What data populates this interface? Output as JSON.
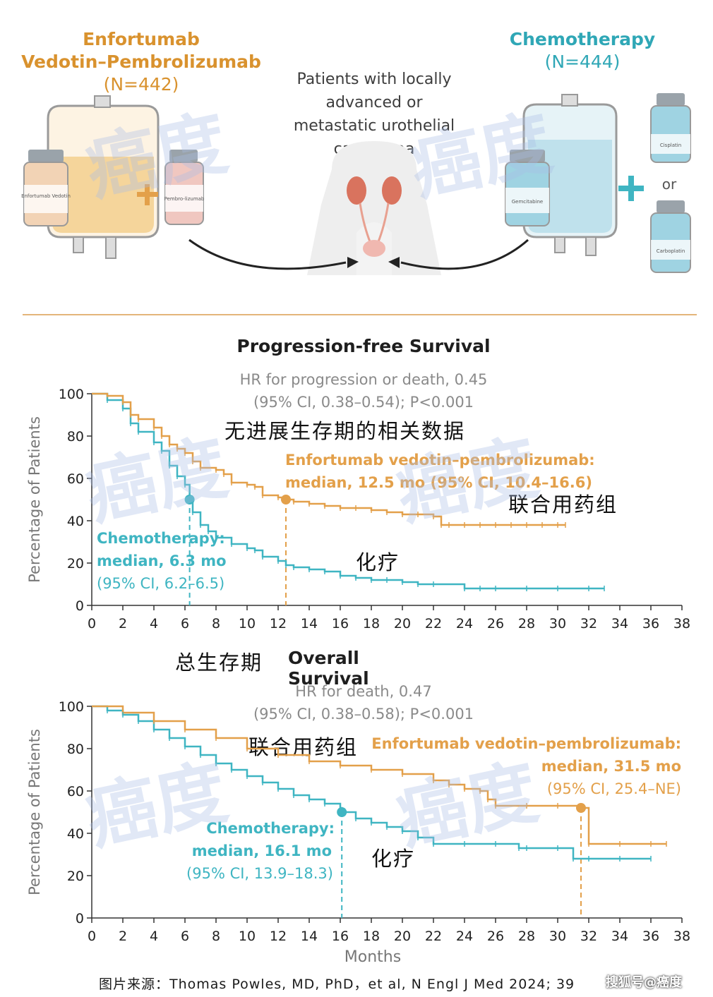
{
  "top": {
    "ev_arm": {
      "line1": "Enfortumab",
      "line2": "Vedotin–Pembrolizumab",
      "n": "(N=442)",
      "vial1_label": "Enfortumab Vedotin",
      "vial2_label": "Pembro-lizumab"
    },
    "chemo_arm": {
      "line1": "Chemotherapy",
      "n": "(N=444)",
      "vial_main": "Gemcitabine",
      "vial_a": "Cisplatin",
      "vial_b": "Carboplatin",
      "or_text": "or"
    },
    "patients": [
      "Patients with locally",
      "advanced or",
      "metastatic urothelial",
      "carcinoma"
    ]
  },
  "pfs": {
    "title": "Progression-free Survival",
    "hr_line1": "HR for progression or death, 0.45",
    "hr_line2": "(95% CI, 0.38–0.54); P<0.001",
    "cn_title": "无进展生存期的相关数据",
    "cn_ev": "联合用药组",
    "cn_chemo": "化疗",
    "ev_label": [
      "Enfortumab vedotin–pembrolizumab:",
      "median, 12.5 mo (95% CI, 10.4–16.6)"
    ],
    "chemo_label": [
      "Chemotherapy:",
      "median, 6.3 mo",
      "(95% CI, 6.2–6.5)"
    ]
  },
  "os": {
    "title": "Overall Survival",
    "cn_title": "总生存期",
    "hr_line1": "HR for death, 0.47",
    "hr_line2": "(95% CI, 0.38–0.58); P<0.001",
    "cn_ev": "联合用药组",
    "cn_chemo": "化疗",
    "ev_label": [
      "Enfortumab vedotin–pembrolizumab:",
      "median, 31.5 mo",
      "(95% CI, 25.4–NE)"
    ],
    "chemo_label": [
      "Chemotherapy:",
      "median, 16.1 mo",
      "(95% CI, 13.9–18.3)"
    ]
  },
  "source": "图片来源：Thomas Powles, MD, PhD，et al, N Engl J Med 2024; 39",
  "brand": "搜狐号@癌度",
  "watermark": "癌度",
  "colors": {
    "ev": "#e3a04a",
    "chemo": "#3fb5c2",
    "axis": "#333333"
  },
  "chart_data": [
    {
      "type": "line",
      "title": "Progression-free Survival",
      "xlabel": "",
      "ylabel": "Percentage of Patients",
      "xlim": [
        0,
        38
      ],
      "ylim": [
        0,
        100
      ],
      "xticks": [
        0,
        2,
        4,
        6,
        8,
        10,
        12,
        14,
        16,
        18,
        20,
        22,
        24,
        26,
        28,
        30,
        32,
        34,
        36,
        38
      ],
      "yticks": [
        0,
        20,
        40,
        60,
        80,
        100
      ],
      "series": [
        {
          "name": "Enfortumab vedotin–pembrolizumab",
          "median": 12.5,
          "x": [
            0,
            1,
            2,
            2.5,
            3,
            4,
            4.5,
            5,
            5.5,
            6,
            6.5,
            7,
            8,
            8.5,
            9,
            10,
            10.5,
            11,
            12,
            12.5,
            13,
            14,
            15,
            16,
            17,
            18,
            19,
            20,
            21,
            22,
            22.5,
            23,
            24,
            25,
            26,
            27,
            28,
            29,
            30,
            30.5
          ],
          "y": [
            100,
            99,
            96,
            90,
            88,
            84,
            80,
            76,
            74,
            72,
            68,
            65,
            64,
            62,
            58,
            57,
            56,
            52,
            51,
            50,
            49,
            48,
            47,
            46,
            46,
            45,
            44,
            43,
            43,
            42,
            38,
            38,
            38,
            38,
            38,
            38,
            38,
            38,
            38,
            38
          ]
        },
        {
          "name": "Chemotherapy",
          "median": 6.3,
          "x": [
            0,
            1,
            2,
            2.5,
            3,
            4,
            4.5,
            5,
            5.5,
            6,
            6.3,
            6.5,
            7,
            7.5,
            8,
            9,
            10,
            10.5,
            11,
            12,
            12.5,
            13,
            14,
            15,
            16,
            17,
            18,
            19,
            20,
            21,
            22,
            24,
            25,
            26,
            28,
            30,
            32,
            33
          ],
          "y": [
            100,
            97,
            93,
            86,
            82,
            77,
            73,
            66,
            61,
            57,
            50,
            44,
            38,
            35,
            32,
            29,
            27,
            26,
            23,
            21,
            19,
            18,
            17,
            16,
            14,
            13,
            12,
            12,
            11,
            10,
            10,
            8,
            8,
            8,
            8,
            8,
            8,
            8
          ]
        }
      ]
    },
    {
      "type": "line",
      "title": "Overall Survival",
      "xlabel": "Months",
      "ylabel": "Percentage of Patients",
      "xlim": [
        0,
        38
      ],
      "ylim": [
        0,
        100
      ],
      "xticks": [
        0,
        2,
        4,
        6,
        8,
        10,
        12,
        14,
        16,
        18,
        20,
        22,
        24,
        26,
        28,
        30,
        32,
        34,
        36,
        38
      ],
      "yticks": [
        0,
        20,
        40,
        60,
        80,
        100
      ],
      "series": [
        {
          "name": "Enfortumab vedotin–pembrolizumab",
          "median": 31.5,
          "x": [
            0,
            2,
            4,
            6,
            8,
            10,
            12,
            14,
            16,
            18,
            20,
            22,
            23,
            24,
            25,
            25.5,
            26,
            28,
            30,
            31.5,
            32,
            34,
            36,
            37
          ],
          "y": [
            100,
            97,
            93,
            89,
            85,
            80,
            77,
            74,
            72,
            70,
            68,
            65,
            63,
            61,
            60,
            56,
            53,
            53,
            53,
            52,
            35,
            35,
            35,
            35
          ]
        },
        {
          "name": "Chemotherapy",
          "median": 16.1,
          "x": [
            0,
            1,
            2,
            3,
            4,
            5,
            6,
            7,
            8,
            9,
            10,
            11,
            12,
            13,
            14,
            15,
            16,
            16.1,
            17,
            18,
            19,
            20,
            21,
            22,
            24,
            26,
            27.5,
            28,
            30,
            31,
            32,
            34,
            36
          ],
          "y": [
            100,
            98,
            96,
            93,
            89,
            85,
            81,
            77,
            73,
            70,
            67,
            64,
            61,
            58,
            56,
            54,
            52,
            50,
            47,
            45,
            43,
            41,
            38,
            35,
            35,
            35,
            33,
            33,
            33,
            28,
            28,
            28,
            28
          ]
        }
      ]
    }
  ]
}
